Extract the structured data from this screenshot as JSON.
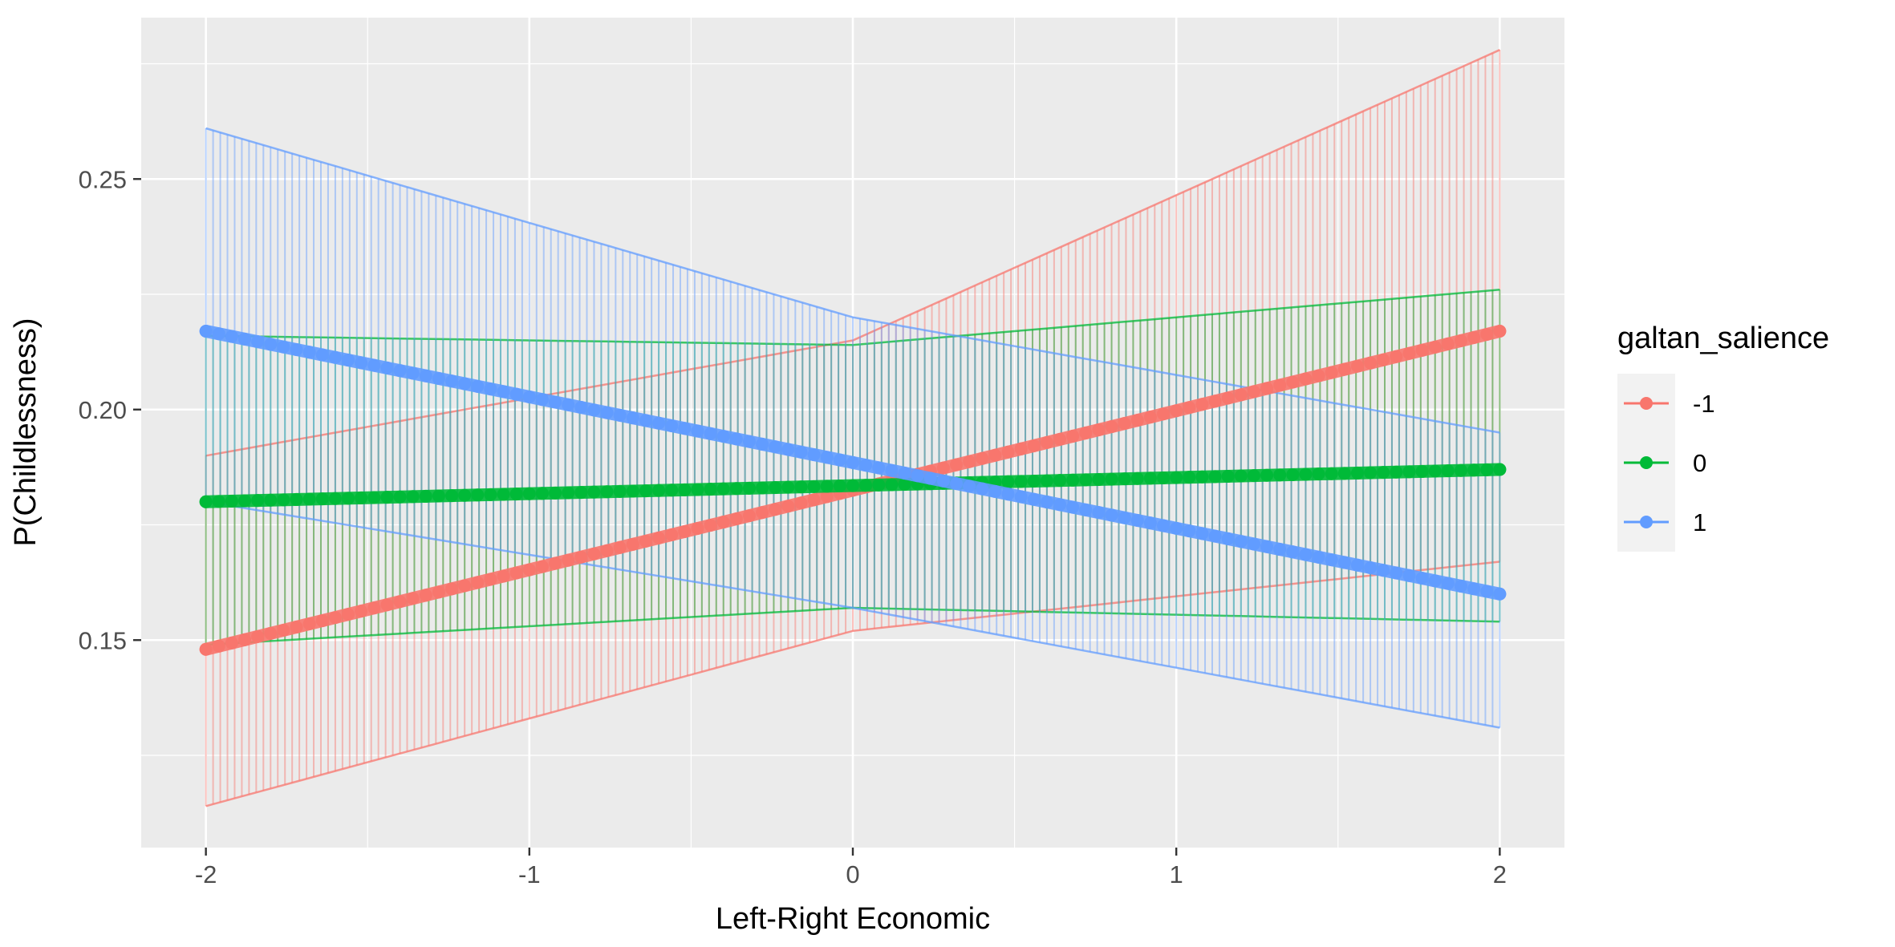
{
  "chart_data": {
    "type": "line",
    "title": "",
    "xlabel": "Left-Right Economic",
    "ylabel": "P(Childlessness)",
    "xlim": [
      -2.2,
      2.2
    ],
    "ylim": [
      0.105,
      0.285
    ],
    "x_ticks": [
      -2,
      -1,
      0,
      1,
      2
    ],
    "x_tick_labels": [
      "-2",
      "-1",
      "0",
      "1",
      "2"
    ],
    "y_ticks": [
      0.15,
      0.2,
      0.25
    ],
    "y_tick_labels": [
      "0.15",
      "0.20",
      "0.25"
    ],
    "grid": true,
    "legend": {
      "title": "galtan_salience",
      "placement": "right",
      "entries": [
        "-1",
        "0",
        "1"
      ]
    },
    "series": [
      {
        "name": "-1",
        "color": "#F8766D",
        "line": {
          "x": [
            -2,
            2
          ],
          "y": [
            0.148,
            0.217
          ]
        },
        "lower": {
          "x": [
            -2,
            0,
            2
          ],
          "y": [
            0.114,
            0.152,
            0.167
          ]
        },
        "upper": {
          "x": [
            -2,
            0,
            2
          ],
          "y": [
            0.19,
            0.215,
            0.278
          ]
        }
      },
      {
        "name": "0",
        "color": "#00BA38",
        "line": {
          "x": [
            -2,
            2
          ],
          "y": [
            0.18,
            0.187
          ]
        },
        "lower": {
          "x": [
            -2,
            0,
            2
          ],
          "y": [
            0.149,
            0.157,
            0.154
          ]
        },
        "upper": {
          "x": [
            -2,
            0,
            2
          ],
          "y": [
            0.216,
            0.214,
            0.226
          ]
        }
      },
      {
        "name": "1",
        "color": "#619CFF",
        "line": {
          "x": [
            -2,
            2
          ],
          "y": [
            0.217,
            0.16
          ]
        },
        "lower": {
          "x": [
            -2,
            0,
            2
          ],
          "y": [
            0.18,
            0.157,
            0.131
          ]
        },
        "upper": {
          "x": [
            -2,
            0,
            2
          ],
          "y": [
            0.261,
            0.22,
            0.195
          ]
        }
      }
    ]
  }
}
